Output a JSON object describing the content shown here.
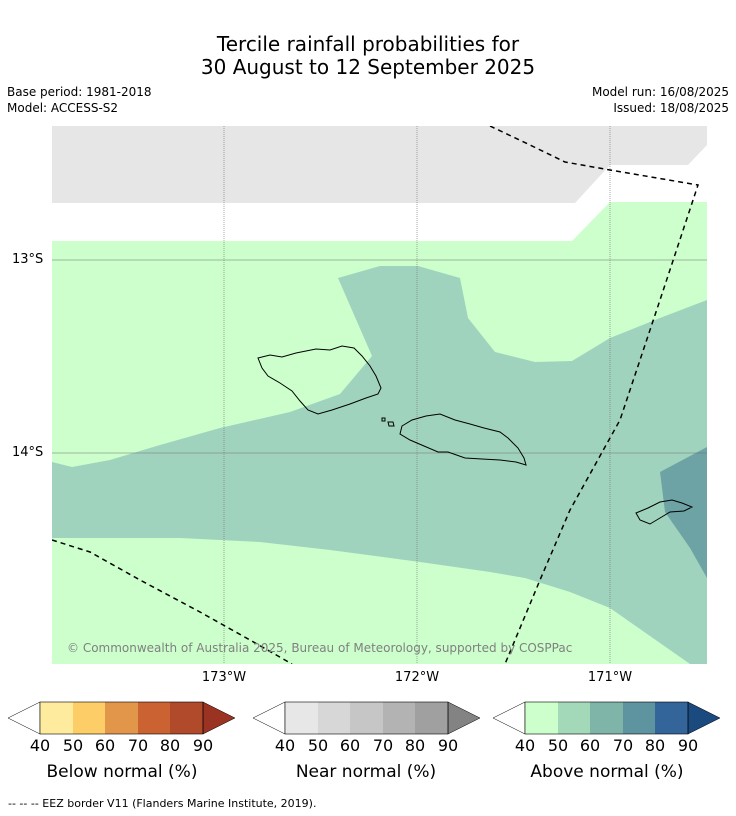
{
  "title": {
    "line1": "Tercile rainfall probabilities for",
    "line2": "30 August to 12 September 2025"
  },
  "meta": {
    "base_period": "Base period: 1981-2018",
    "model": "Model: ACCESS-S2",
    "model_run": "Model run: 16/08/2025",
    "issued": "Issued: 18/08/2025"
  },
  "map": {
    "longitude_labels": [
      "173°W",
      "172°W",
      "171°W"
    ],
    "latitude_labels": [
      "13°S",
      "14°S"
    ],
    "copyright": "© Commonwealth of Australia 2025, Bureau of Meteorology, supported by COSPPac",
    "colors": {
      "no_data": "#e6e6e6",
      "above_40": "#ccffcc",
      "above_50": "#a0d3bd",
      "above_60": "#6ea3a5",
      "land_outline": "#000000",
      "eez_border": "#000000"
    }
  },
  "colorbars": [
    {
      "title": "Below normal (%)",
      "ticks": [
        "40",
        "50",
        "60",
        "70",
        "80",
        "90"
      ],
      "colors": [
        "#ffffff",
        "#ffeb9e",
        "#fdcd68",
        "#e2964a",
        "#cb6231",
        "#b04a2b",
        "#9a3321"
      ]
    },
    {
      "title": "Near normal (%)",
      "ticks": [
        "40",
        "50",
        "60",
        "70",
        "80",
        "90"
      ],
      "colors": [
        "#ffffff",
        "#e7e7e7",
        "#d7d7d7",
        "#c6c6c6",
        "#b3b3b3",
        "#a0a0a0",
        "#838383"
      ]
    },
    {
      "title": "Above normal (%)",
      "ticks": [
        "40",
        "50",
        "60",
        "70",
        "80",
        "90"
      ],
      "colors": [
        "#ffffff",
        "#ccffcc",
        "#a3d9b9",
        "#7eb5a8",
        "#5d949f",
        "#34659a",
        "#1b4a7e"
      ]
    }
  ],
  "footer": "--  --  -- EEZ border V11 (Flanders Marine Institute, 2019)."
}
